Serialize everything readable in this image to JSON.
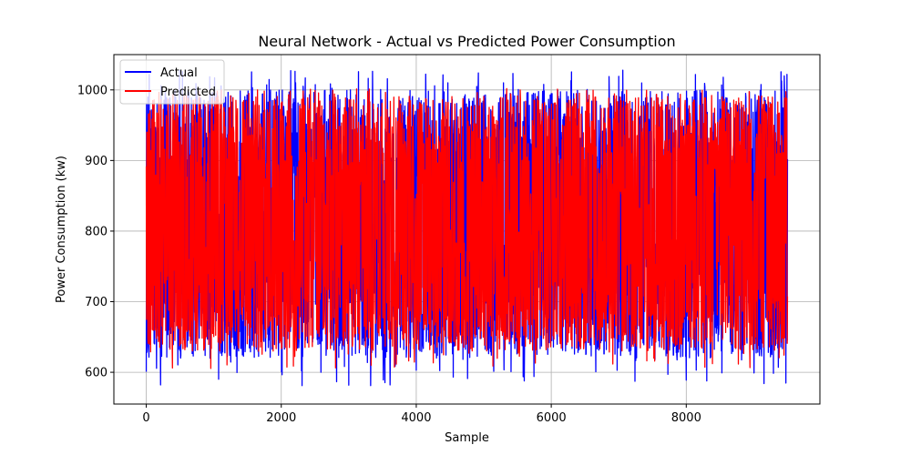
{
  "chart_data": {
    "type": "line",
    "title": "Neural Network - Actual vs Predicted Power Consumption",
    "xlabel": "Sample",
    "ylabel": "Power Consumption (kw)",
    "xlim": [
      -480,
      9980
    ],
    "ylim": [
      555,
      1050
    ],
    "x_ticks": [
      0,
      2000,
      4000,
      6000,
      8000
    ],
    "x_tick_labels": [
      "0",
      "2000",
      "4000",
      "6000",
      "8000"
    ],
    "y_ticks": [
      600,
      700,
      800,
      900,
      1000
    ],
    "y_tick_labels": [
      "600",
      "700",
      "800",
      "900",
      "1000"
    ],
    "grid": true,
    "legend_position": "top-left",
    "n_samples": 9500,
    "series": [
      {
        "name": "Actual",
        "color": "#0000ff",
        "summary": {
          "min": 578,
          "max": 1028,
          "typical_low": 620,
          "typical_high": 1000
        }
      },
      {
        "name": "Predicted",
        "color": "#ff0000",
        "summary": {
          "min": 605,
          "max": 1002,
          "typical_low": 630,
          "typical_high": 990
        }
      }
    ]
  }
}
